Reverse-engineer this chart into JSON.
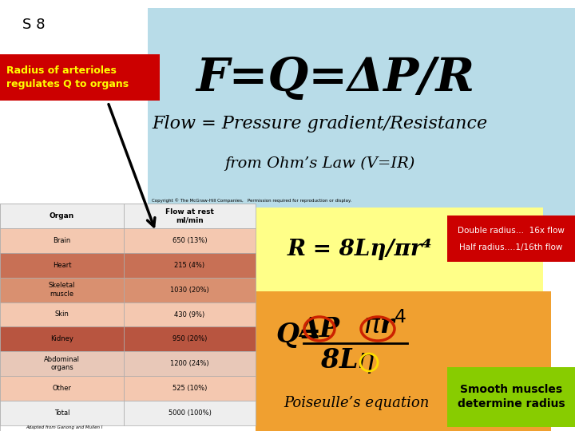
{
  "bg_color": "#ffffff",
  "slide_label": "S 8",
  "red_box_text": "Radius of arterioles\nregulates Q to organs",
  "red_box_color": "#cc0000",
  "red_box_text_color": "#ffff00",
  "light_blue_bg": "#b8dce8",
  "main_formula": "F=Q=ΔP/R",
  "flow_text": "Flow = Pressure gradient/Resistance",
  "ohm_text": "from Ohm’s Law (V=IR)",
  "yellow_bg": "#ffff88",
  "r_formula": "R = 8Lη/πr⁴",
  "red_info_bg": "#cc0000",
  "red_info_line1": "Double radius…  16x flow",
  "red_info_line2": "Half radius….1/16th flow",
  "orange_bg": "#f0a030",
  "poiseulle_text": "Poiseulle’s equation",
  "green_box_bg": "#88cc00",
  "green_box_text": "Smooth muscles\ndetermine radius",
  "table_organs": [
    "Organ",
    "Brain",
    "Heart",
    "Skeletal\nmuscle",
    "Skin",
    "Kidney",
    "Abdominal\norgans",
    "Other",
    "Total"
  ],
  "table_flows": [
    "Flow at rest\nml/min",
    "650 (13%)",
    "215 (4%)",
    "1030 (20%)",
    "430 (9%)",
    "950 (20%)",
    "1200 (24%)",
    "525 (10%)",
    "5000 (100%)"
  ],
  "table_row_colors": [
    "#eeeeee",
    "#f4c8b0",
    "#c87055",
    "#d99070",
    "#f4c8b0",
    "#b85540",
    "#e8c8b8",
    "#f4c8b0",
    "#eeeeee"
  ]
}
